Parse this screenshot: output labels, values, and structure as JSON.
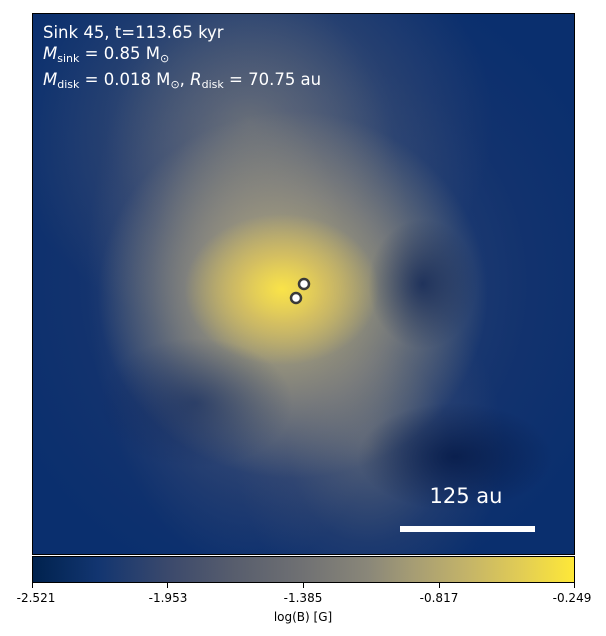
{
  "panel": {
    "title_line": "Sink 45, t=113.65 kyr",
    "msink_symbol": "M",
    "msink_sub": "sink",
    "msink_value": " = 0.85 M",
    "msink_unit_sub": "⊙",
    "mdisk_symbol": "M",
    "mdisk_sub": "disk",
    "mdisk_value": " = 0.018 M",
    "mdisk_unit_sub": "⊙",
    "rdisk_sep": ", ",
    "rdisk_symbol": "R",
    "rdisk_sub": "disk",
    "rdisk_value": " = 70.75 au"
  },
  "scale_bar": {
    "label": "125 au"
  },
  "sinks": {
    "count": 2,
    "marker_fill": "#ffffff",
    "marker_edge": "#444444"
  },
  "colorbar": {
    "label": "log(B) [G]",
    "ticks": [
      "-2.521",
      "-1.953",
      "-1.385",
      "-0.817",
      "-0.249"
    ],
    "colormap": "cividis",
    "min_color": "#00224e",
    "max_color": "#fee838"
  }
}
